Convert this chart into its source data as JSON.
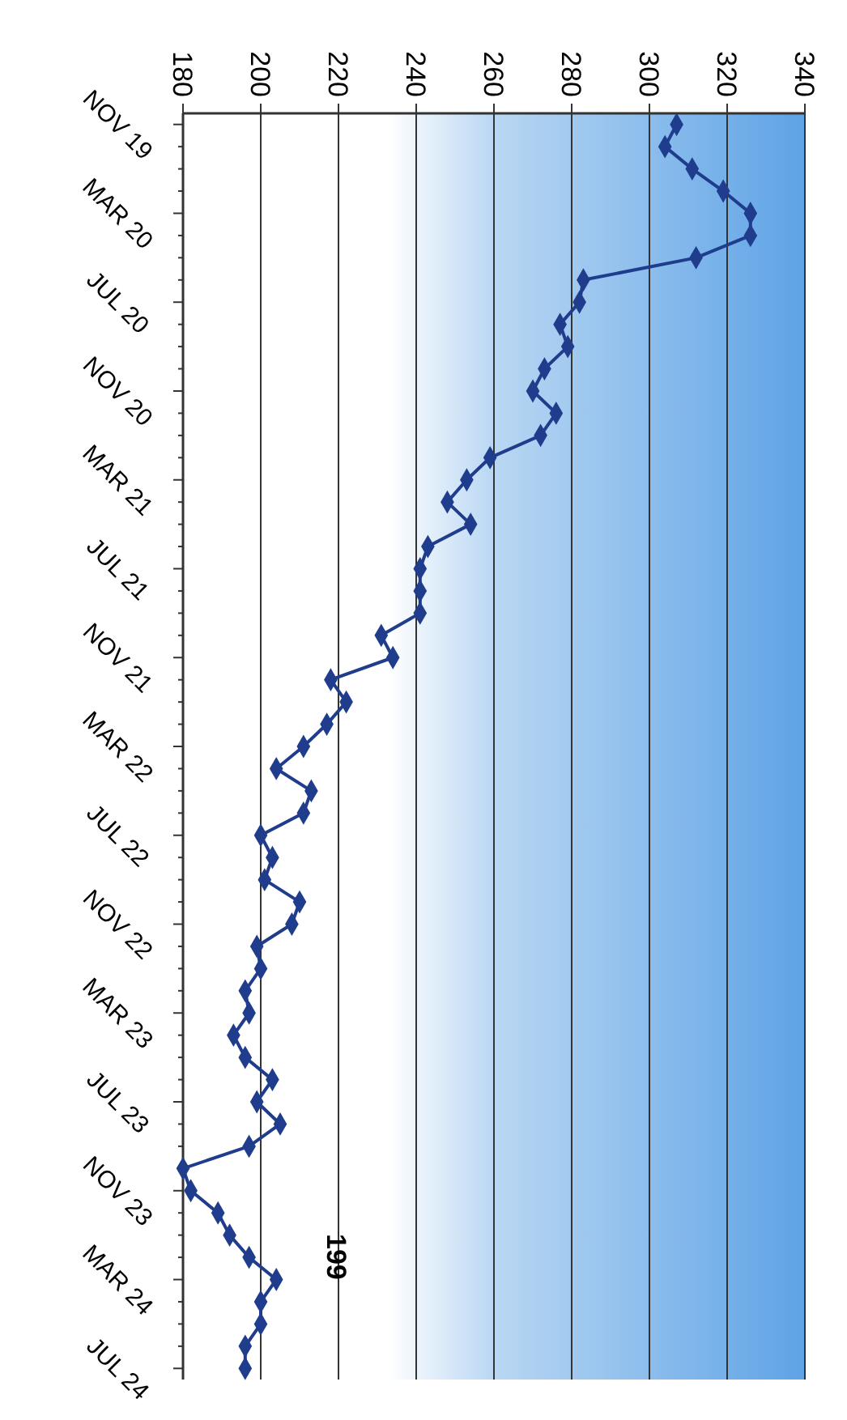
{
  "chart_data": {
    "type": "line",
    "orientation": "horizontal",
    "categories": [
      "NOV 19",
      null,
      null,
      null,
      "MAR 20",
      null,
      null,
      null,
      "JUL 20",
      null,
      null,
      null,
      "NOV 20",
      null,
      null,
      null,
      "MAR 21",
      null,
      null,
      null,
      "JUL 21",
      null,
      null,
      null,
      "NOV 21",
      null,
      null,
      null,
      "MAR 22",
      null,
      null,
      null,
      "JUL 22",
      null,
      null,
      null,
      "NOV 22",
      null,
      null,
      null,
      "MAR 23",
      null,
      null,
      null,
      "JUL 23",
      null,
      null,
      null,
      "NOV 23",
      null,
      null,
      null,
      "MAR 24",
      null,
      null,
      null,
      "JUL 24"
    ],
    "series": [
      {
        "color": "#1f3d8c",
        "values": [
          307,
          304,
          311,
          319,
          326,
          326,
          312,
          283,
          282,
          277,
          279,
          273,
          270,
          276,
          272,
          259,
          253,
          248,
          254,
          243,
          241,
          241,
          241,
          231,
          234,
          218,
          222,
          217,
          211,
          204,
          213,
          211,
          200,
          203,
          201,
          210,
          208,
          199,
          200,
          196,
          197,
          193,
          196,
          203,
          199,
          205,
          197,
          180,
          182,
          189,
          192,
          197,
          204,
          200,
          200,
          196,
          196
        ]
      }
    ],
    "xlim": [
      180,
      340
    ],
    "xticks": [
      180,
      200,
      220,
      240,
      260,
      280,
      300,
      320,
      340
    ],
    "grid": "x",
    "marker": "diamond",
    "line_style": "solid",
    "annotations": [
      "199"
    ]
  }
}
